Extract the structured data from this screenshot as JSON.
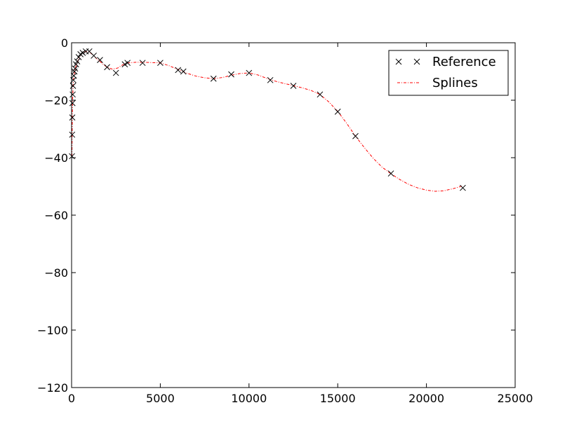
{
  "chart_data": {
    "type": "line",
    "title": "",
    "xlabel": "",
    "ylabel": "",
    "xlim": [
      0,
      25000
    ],
    "ylim": [
      -120,
      0
    ],
    "xticks": [
      "0",
      "5000",
      "10000",
      "15000",
      "20000",
      "25000"
    ],
    "yticks": [
      "0",
      "−20",
      "−40",
      "−60",
      "−80",
      "−100",
      "−120"
    ],
    "grid": false,
    "legend_position": "top-right",
    "series": [
      {
        "name": "Reference",
        "style": "marker-x",
        "color": "#000000",
        "x": [
          20,
          31.5,
          40,
          50,
          63,
          80,
          100,
          125,
          160,
          200,
          250,
          315,
          400,
          500,
          630,
          800,
          1000,
          1250,
          1600,
          2000,
          2500,
          3000,
          3150,
          4000,
          5000,
          6000,
          6300,
          8000,
          9000,
          10000,
          11200,
          12500,
          14000,
          15000,
          16000,
          18000,
          22050
        ],
        "y": [
          -39.5,
          -32,
          -26,
          -21,
          -18,
          -15,
          -13,
          -11.5,
          -10,
          -9,
          -7.5,
          -6.5,
          -5,
          -4,
          -3.5,
          -3,
          -3,
          -4.5,
          -6,
          -8.5,
          -10.5,
          -7.5,
          -7,
          -7,
          -7,
          -9.5,
          -10,
          -12.5,
          -11,
          -10.5,
          -13,
          -15,
          -18,
          -24,
          -32.5,
          -45.5,
          -50.5
        ]
      },
      {
        "name": "Splines",
        "style": "dash-dot",
        "color": "#ff0000",
        "x": [
          20,
          50,
          100,
          200,
          300,
          400,
          500,
          600,
          700,
          800,
          900,
          1000,
          1200,
          1400,
          1600,
          1800,
          2000,
          2300,
          2600,
          2900,
          3200,
          3600,
          4000,
          4500,
          5000,
          5500,
          6000,
          6500,
          7000,
          7500,
          8000,
          8500,
          9000,
          9500,
          10000,
          10500,
          11000,
          11500,
          12000,
          12500,
          13000,
          13500,
          14000,
          14500,
          15000,
          15500,
          16000,
          16500,
          17000,
          17500,
          18000,
          18500,
          19000,
          19500,
          20000,
          20500,
          21000,
          21500,
          22050
        ],
        "y": [
          -39.5,
          -21,
          -13,
          -9,
          -7.3,
          -5.5,
          -4.3,
          -3.7,
          -3.3,
          -3.1,
          -3.1,
          -3.2,
          -4.2,
          -5.5,
          -6.5,
          -7.6,
          -8.5,
          -9.2,
          -8.8,
          -7.6,
          -7,
          -6.8,
          -6.8,
          -6.9,
          -7,
          -8,
          -9.3,
          -10.6,
          -11.6,
          -12.2,
          -12.5,
          -12.1,
          -11.3,
          -10.7,
          -10.5,
          -11.2,
          -12.4,
          -13.4,
          -14.2,
          -14.9,
          -15.7,
          -16.6,
          -18,
          -20.6,
          -23.9,
          -28,
          -32.5,
          -36.5,
          -40.2,
          -43.3,
          -45.6,
          -47.6,
          -49.3,
          -50.5,
          -51.3,
          -51.7,
          -51.5,
          -50.8,
          -49.8
        ]
      }
    ]
  }
}
